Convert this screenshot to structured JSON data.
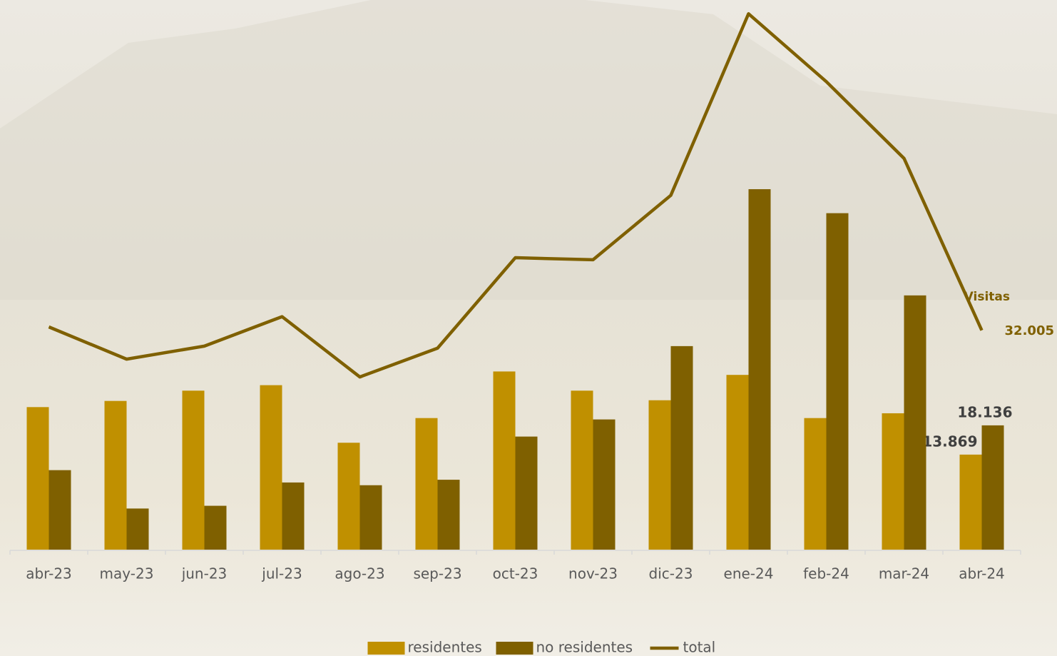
{
  "chart_data": {
    "type": "bar-line",
    "categories": [
      "abr-23",
      "may-23",
      "jun-23",
      "jul-23",
      "ago-23",
      "sep-23",
      "oct-23",
      "nov-23",
      "dic-23",
      "ene-24",
      "feb-24",
      "mar-24",
      "abr-24"
    ],
    "series": [
      {
        "name": "residentes",
        "type": "bar",
        "color": "#c09000",
        "values": [
          20800,
          21700,
          23200,
          24000,
          15600,
          19200,
          26000,
          23200,
          21800,
          25500,
          19200,
          19900,
          13869
        ],
        "value_labels": [
          null,
          null,
          null,
          null,
          null,
          null,
          null,
          null,
          null,
          null,
          null,
          null,
          "13.869"
        ]
      },
      {
        "name": "no residentes",
        "type": "bar",
        "color": "#7f6000",
        "values": [
          11600,
          6000,
          6400,
          9800,
          9400,
          10200,
          16500,
          19000,
          29700,
          52600,
          49100,
          37100,
          18136
        ],
        "value_labels": [
          null,
          null,
          null,
          null,
          null,
          null,
          null,
          null,
          null,
          null,
          null,
          null,
          "18.136"
        ]
      },
      {
        "name": "total",
        "type": "line",
        "color": "#7f6000",
        "values": [
          32500,
          27800,
          29700,
          34000,
          25200,
          29400,
          42600,
          42300,
          51700,
          78200,
          68300,
          57100,
          32005
        ],
        "value_labels": [
          null,
          null,
          null,
          null,
          null,
          null,
          null,
          null,
          null,
          null,
          null,
          null,
          "32.005"
        ]
      }
    ],
    "annotations": [
      "Visitas"
    ],
    "ylim": [
      0,
      80000
    ],
    "legend": "bottom"
  }
}
